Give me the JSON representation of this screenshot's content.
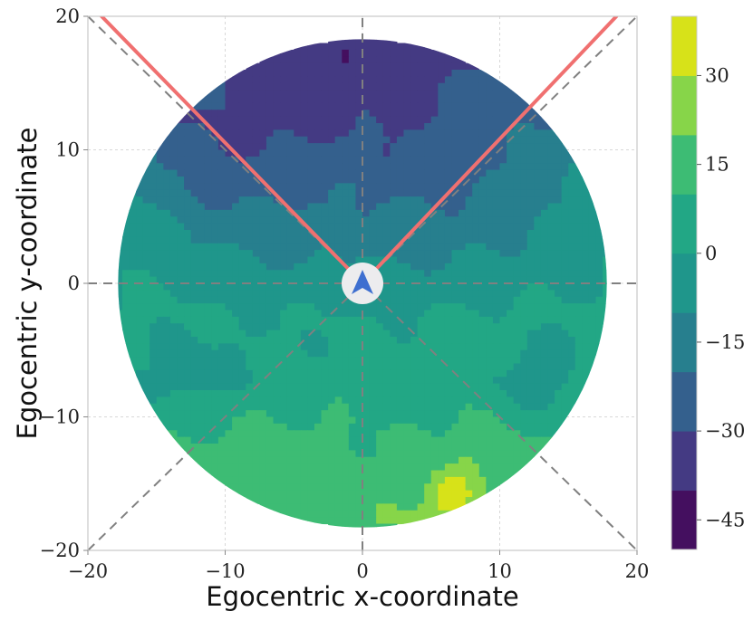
{
  "chart_data": {
    "type": "heatmap",
    "subtype": "filled-contour egocentric map",
    "title": "",
    "xlabel": "Egocentric x-coordinate",
    "ylabel": "Egocentric y-coordinate",
    "xlim": [
      -20,
      20
    ],
    "ylim": [
      -20,
      20
    ],
    "xticks": [
      "−20",
      "−10",
      "0",
      "10",
      "20"
    ],
    "yticks": [
      "−20",
      "−10",
      "0",
      "10",
      "20"
    ],
    "grid": true,
    "field_of_view": {
      "color": "#f07070",
      "ray_endpoints": [
        [
          -19,
          20
        ],
        [
          18.5,
          20
        ]
      ]
    },
    "reference_lines": {
      "color": "#808080",
      "style": "dashed",
      "lines": [
        {
          "from": [
            -20,
            0
          ],
          "to": [
            20,
            0
          ]
        },
        {
          "from": [
            0,
            -20
          ],
          "to": [
            0,
            20
          ]
        },
        {
          "from": [
            -20,
            20
          ],
          "to": [
            20,
            -20
          ]
        },
        {
          "from": [
            -20,
            -20
          ],
          "to": [
            20,
            20
          ]
        }
      ]
    },
    "agent_marker": {
      "x": 0,
      "y": 0,
      "glyph": "arrow-up",
      "color": "#3e6fd0"
    },
    "valid_region_radius": 17.8,
    "colorbar": {
      "levels": [
        -50,
        -40,
        -30,
        -20,
        -10,
        0,
        10,
        20,
        30,
        40
      ],
      "colors": [
        "#440f5f",
        "#443a83",
        "#34608d",
        "#277f8e",
        "#1f968b",
        "#22a785",
        "#3dbc74",
        "#87d549",
        "#d7e219"
      ],
      "tick_values": [
        -45,
        -30,
        -15,
        0,
        15,
        30
      ],
      "tick_labels": [
        "−45",
        "−30",
        "−15",
        "0",
        "15",
        "30"
      ]
    },
    "value_grid": {
      "x": [
        -17.5,
        -12.5,
        -7.5,
        -2.5,
        2.5,
        7.5,
        12.5,
        17.5
      ],
      "y": [
        17.5,
        12.5,
        7.5,
        2.5,
        -2.5,
        -7.5,
        -12.5,
        -17.5
      ],
      "z": [
        [
          -22,
          -25,
          -33,
          -38,
          -38,
          -32,
          -22,
          -18
        ],
        [
          -20,
          -30,
          -36,
          -32,
          -33,
          -27,
          -22,
          -15
        ],
        [
          -7,
          -22,
          -25,
          -22,
          -24,
          -22,
          -15,
          -4
        ],
        [
          -2,
          -8,
          -12,
          -12,
          -12,
          -12,
          -7,
          -2
        ],
        [
          2,
          2,
          0,
          0,
          0,
          2,
          2,
          2
        ],
        [
          2,
          -5,
          2,
          5,
          5,
          5,
          -7,
          4
        ],
        [
          10,
          14,
          17,
          14,
          10,
          18,
          14,
          10
        ],
        [
          12,
          15,
          14,
          14,
          20,
          25,
          12,
          10
        ]
      ]
    },
    "peak": {
      "x": 6.3,
      "y": -15.8,
      "value": 36
    }
  }
}
